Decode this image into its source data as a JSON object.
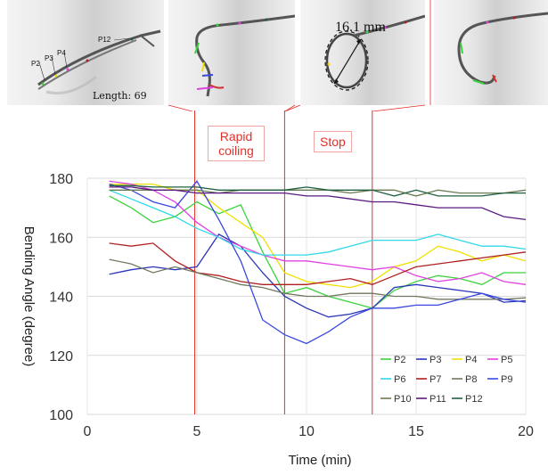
{
  "photos": {
    "labels": [
      "P2",
      "P3",
      "P4",
      "P12"
    ],
    "length_label": "Length: 69 mm",
    "diameter_label": "16.1  mm"
  },
  "phases": {
    "rapid": "Rapid\ncoiling",
    "stop": "Stop"
  },
  "colors": {
    "phase_line": "#e0302a"
  },
  "chart_data": {
    "type": "line",
    "title": "",
    "xlabel": "Time (min)",
    "ylabel": "Bending Angle (degree)",
    "xlim": [
      0,
      20
    ],
    "ylim": [
      100,
      180
    ],
    "xticks": [
      0,
      5,
      10,
      15,
      20
    ],
    "yticks": [
      100,
      120,
      140,
      160,
      180
    ],
    "grid": true,
    "legend_position": "bottom-right",
    "phase_lines_x": [
      4.9,
      9.0,
      13.0
    ],
    "x": [
      1,
      2,
      3,
      4,
      5,
      6,
      7,
      8,
      9,
      10,
      11,
      12,
      13,
      14,
      15,
      16,
      17,
      18,
      19,
      20
    ],
    "series": [
      {
        "name": "P2",
        "color": "#3cd43c",
        "values": [
          174,
          170,
          165,
          167,
          172,
          168,
          171,
          155,
          141,
          143,
          140,
          138,
          136,
          142,
          145,
          147,
          146,
          144,
          148,
          148
        ]
      },
      {
        "name": "P3",
        "color": "#2a35b8",
        "values": [
          147.5,
          149,
          150,
          149,
          150,
          161,
          157,
          148,
          140,
          136,
          133,
          134,
          136,
          143,
          144,
          143,
          142,
          141,
          138,
          138.5
        ]
      },
      {
        "name": "P4",
        "color": "#f0e000",
        "values": [
          178,
          178,
          178,
          176,
          176,
          170,
          165,
          160,
          148,
          145,
          144,
          143,
          145,
          150,
          152,
          157,
          155,
          152,
          154,
          152
        ]
      },
      {
        "name": "P5",
        "color": "#e040e0",
        "values": [
          179,
          178,
          176,
          172,
          165,
          160,
          157,
          154,
          152,
          152,
          151,
          150,
          149,
          150,
          147,
          145,
          146,
          148,
          145,
          144
        ]
      },
      {
        "name": "P6",
        "color": "#30d8e8",
        "values": [
          176,
          173,
          170,
          167,
          163,
          160,
          156,
          154,
          154,
          154,
          155,
          157,
          159,
          159,
          159,
          161,
          159,
          157,
          157,
          156
        ]
      },
      {
        "name": "P7",
        "color": "#b02020",
        "values": [
          158,
          157,
          158,
          152,
          148,
          147,
          145,
          144,
          144,
          144,
          145,
          146,
          144,
          147,
          150,
          151,
          152,
          153,
          154,
          155
        ]
      },
      {
        "name": "P8",
        "color": "#707860",
        "values": [
          152.5,
          151,
          148,
          150,
          148,
          146,
          144,
          143,
          141,
          140,
          140,
          141,
          141,
          140,
          140,
          139,
          139,
          139,
          139,
          139.5
        ]
      },
      {
        "name": "P9",
        "color": "#3a48e0",
        "values": [
          178,
          176,
          172,
          170,
          179,
          166,
          152,
          132,
          127,
          124,
          128,
          133,
          136,
          136,
          137,
          137,
          139,
          141,
          139,
          138
        ]
      },
      {
        "name": "P10",
        "color": "#6a7a50",
        "values": [
          176,
          176,
          176,
          176,
          176,
          175,
          176,
          176,
          176,
          176,
          176,
          175,
          176,
          176,
          174,
          176,
          175,
          175,
          175,
          176
        ]
      },
      {
        "name": "P11",
        "color": "#5a1a80",
        "values": [
          177,
          177,
          176,
          176,
          175,
          175,
          175,
          175,
          175,
          174,
          174,
          173,
          172,
          172,
          171,
          170,
          170,
          170,
          167,
          166
        ]
      },
      {
        "name": "P12",
        "color": "#206040",
        "values": [
          177.5,
          177.5,
          177,
          177,
          177,
          176,
          176,
          176,
          176,
          177,
          176,
          176,
          176,
          174,
          176,
          174,
          174,
          174,
          175,
          175
        ]
      }
    ]
  }
}
